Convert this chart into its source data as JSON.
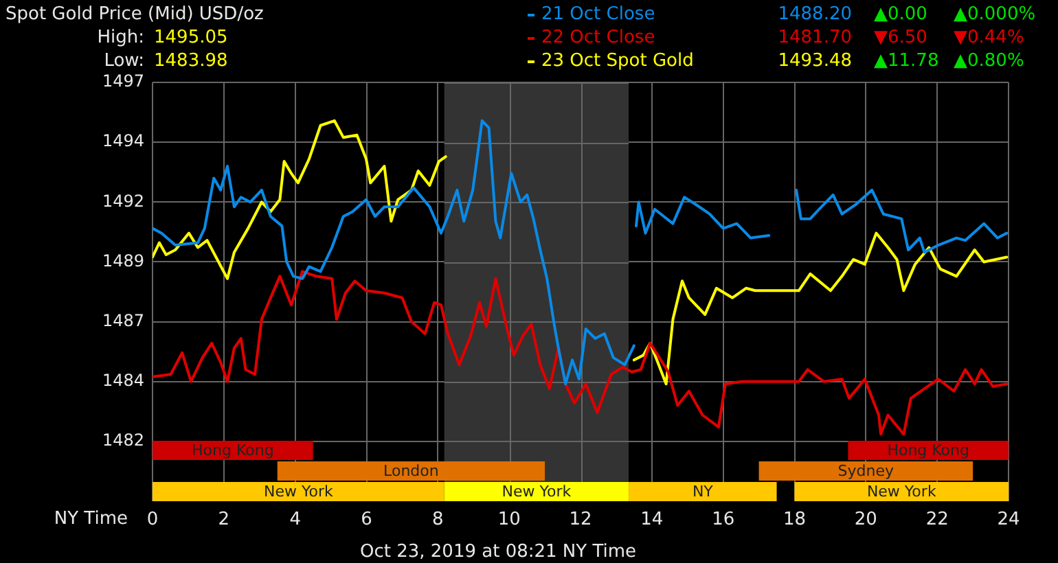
{
  "chart_data": {
    "type": "line",
    "title": "Spot Gold Price (Mid) USD/oz",
    "xlabel": "NY Time",
    "xlim": [
      0,
      24
    ],
    "xticks": [
      0,
      2,
      4,
      6,
      8,
      10,
      12,
      14,
      16,
      18,
      20,
      22,
      24
    ],
    "ylim": [
      1479.5,
      1497
    ],
    "yticks": [
      1482,
      {
        "value": 1484.5,
        "label": "1484"
      },
      1487,
      {
        "value": 1489.5,
        "label": "1489"
      },
      1492,
      {
        "value": 1494.5,
        "label": "1494"
      },
      1497
    ],
    "grid": true,
    "legend": "top right",
    "marker": "none",
    "line_style": "solid",
    "series": [
      {
        "name": "21 Oct Close",
        "color": "#0a8ae6",
        "x": [
          0,
          0.25,
          0.64,
          1.27,
          1.46,
          1.72,
          1.91,
          2.1,
          2.29,
          2.48,
          2.74,
          3.06,
          3.31,
          3.63,
          3.76,
          3.95,
          4.2,
          4.39,
          4.71,
          5.03,
          5.35,
          5.61,
          5.99,
          6.24,
          6.5,
          6.88,
          7.32,
          7.77,
          8.09,
          8.28,
          8.54,
          8.73,
          8.98,
          9.24,
          9.43,
          9.62,
          9.75,
          10.06,
          10.32,
          10.5,
          10.68,
          10.87,
          11.06,
          11.26,
          11.38,
          11.58,
          11.77,
          11.96,
          12.15,
          12.41,
          12.67,
          12.92,
          13.24,
          13.5,
          13.53,
          13.56,
          13.63,
          13.82,
          14.08,
          14.59,
          14.91,
          15.23,
          15.62,
          16.0,
          16.38,
          16.77,
          17.28,
          17.6,
          18.05,
          18.18,
          18.44,
          18.69,
          19.08,
          19.33,
          19.72,
          20.17,
          20.49,
          21.0,
          21.19,
          21.51,
          21.64,
          22.03,
          22.54,
          22.79,
          23.31,
          23.69,
          23.95
        ],
        "values": [
          1490.9,
          1490.7,
          1490.2,
          1490.3,
          1490.9,
          1493,
          1492.5,
          1493.5,
          1491.8,
          1492.2,
          1492,
          1492.5,
          1491.4,
          1491,
          1489.5,
          1488.9,
          1488.8,
          1489.3,
          1489.1,
          1490.1,
          1491.4,
          1491.6,
          1492.1,
          1491.4,
          1491.8,
          1491.8,
          1492.6,
          1491.8,
          1490.7,
          1491.4,
          1492.5,
          1491.2,
          1492.5,
          1495.4,
          1495.1,
          1491.2,
          1490.5,
          1493.2,
          1492,
          1492.3,
          1491.3,
          1490,
          1488.8,
          1486.9,
          1485.9,
          1484.4,
          1485.4,
          1484.6,
          1486.7,
          1486.3,
          1486.5,
          1485.5,
          1485.2,
          1486,
          null,
          1491,
          1492,
          1490.7,
          1491.7,
          1491.1,
          1492.2,
          1491.9,
          1491.5,
          1490.9,
          1491.1,
          1490.5,
          1490.6,
          null,
          1492.5,
          1491.3,
          1491.3,
          1491.7,
          1492.3,
          1491.5,
          1491.9,
          1492.5,
          1491.5,
          1491.3,
          1490,
          1490.5,
          1489.9,
          1490.2,
          1490.5,
          1490.4,
          1491.1,
          1490.5,
          1490.7
        ]
      },
      {
        "name": "22 Oct Close",
        "color": "#e00000",
        "x": [
          0,
          0.51,
          0.83,
          1.08,
          1.4,
          1.66,
          1.91,
          2.1,
          2.29,
          2.48,
          2.61,
          2.87,
          3.06,
          3.31,
          3.57,
          3.89,
          4.2,
          4.59,
          5.03,
          5.16,
          5.41,
          5.67,
          5.99,
          6.5,
          7.0,
          7.26,
          7.64,
          7.9,
          8.09,
          8.28,
          8.6,
          8.92,
          9.17,
          9.36,
          9.62,
          9.94,
          10.13,
          10.38,
          10.62,
          10.87,
          11.13,
          11.38,
          11.58,
          11.83,
          12.15,
          12.47,
          12.86,
          13.18,
          13.44,
          13.69,
          13.95,
          14.21,
          14.46,
          14.72,
          15.04,
          15.42,
          15.87,
          16.06,
          16.51,
          17.03,
          18.12,
          18.37,
          18.82,
          19.33,
          19.53,
          19.97,
          20.36,
          20.42,
          20.62,
          21.06,
          21.26,
          21.64,
          22.03,
          22.47,
          22.79,
          23.05,
          23.24,
          23.56,
          23.95
        ],
        "values": [
          1484.7,
          1484.8,
          1485.7,
          1484.5,
          1485.5,
          1486.1,
          1485.3,
          1484.5,
          1485.9,
          1486.3,
          1485,
          1484.8,
          1487.1,
          1488,
          1488.9,
          1487.7,
          1489.1,
          1488.9,
          1488.8,
          1487.1,
          1488.2,
          1488.7,
          1488.3,
          1488.2,
          1488,
          1487,
          1486.5,
          1487.8,
          1487.7,
          1486.5,
          1485.2,
          1486.4,
          1487.8,
          1486.8,
          1488.8,
          1486.7,
          1485.6,
          1486.4,
          1486.9,
          1485.2,
          1484.2,
          1485.9,
          1484.4,
          1483.6,
          1484.4,
          1483.2,
          1484.8,
          1485.1,
          1484.9,
          1485,
          1486.1,
          1485.5,
          1484.9,
          1483.5,
          1484.1,
          1483.1,
          1482.6,
          1484.4,
          1484.5,
          1484.5,
          1484.5,
          1485,
          1484.5,
          1484.6,
          1483.8,
          1484.6,
          1483.1,
          1482.3,
          1483.1,
          1482.3,
          1483.8,
          1484.2,
          1484.6,
          1484.1,
          1485,
          1484.4,
          1485,
          1484.3,
          1484.4
        ]
      },
      {
        "name": "23 Oct Spot Gold",
        "color": "#ffff00",
        "x": [
          0,
          0.19,
          0.38,
          0.64,
          1.02,
          1.27,
          1.53,
          1.78,
          2.1,
          2.29,
          2.68,
          3.06,
          3.31,
          3.57,
          3.69,
          3.89,
          4.08,
          4.39,
          4.71,
          5.1,
          5.35,
          5.73,
          5.99,
          6.11,
          6.5,
          6.69,
          6.88,
          7.26,
          7.45,
          7.77,
          8.03,
          8.22,
          8.5,
          13.5,
          13.76,
          13.95,
          14.14,
          14.4,
          14.59,
          14.85,
          15.04,
          15.49,
          15.81,
          16.26,
          16.64,
          16.9,
          18.12,
          18.44,
          19.01,
          19.33,
          19.65,
          19.97,
          20.29,
          20.62,
          20.87,
          21.06,
          21.38,
          21.77,
          22.09,
          22.54,
          23.05,
          23.31,
          23.95
        ],
        "values": [
          1489.7,
          1490.3,
          1489.8,
          1490,
          1490.7,
          1490.1,
          1490.4,
          1489.7,
          1488.8,
          1489.9,
          1490.9,
          1492,
          1491.6,
          1492.1,
          1493.7,
          1493.2,
          1492.8,
          1493.8,
          1495.2,
          1495.4,
          1494.7,
          1494.8,
          1493.8,
          1492.8,
          1493.5,
          1491.2,
          1492.1,
          1492.5,
          1493.3,
          1492.7,
          1493.7,
          1493.9,
          null,
          1485.4,
          1485.6,
          1486.1,
          1485.4,
          1484.4,
          1487.1,
          1488.7,
          1488,
          1487.3,
          1488.4,
          1488,
          1488.4,
          1488.3,
          1488.3,
          1489,
          1488.3,
          1488.9,
          1489.6,
          1489.4,
          1490.7,
          1490.1,
          1489.6,
          1488.3,
          1489.4,
          1490.1,
          1489.2,
          1488.9,
          1490,
          1489.5,
          1489.7
        ]
      }
    ],
    "bands": [
      {
        "axis": "x",
        "from": 8.18,
        "to": 13.35,
        "label": null,
        "color": "#333333"
      },
      {
        "axis": "x",
        "from": 0,
        "to": 4.5,
        "label": "Hong Kong",
        "color": "#cc0000"
      },
      {
        "axis": "x",
        "from": 19.5,
        "to": 24,
        "label": "Hong Kong",
        "color": "#cc0000"
      },
      {
        "axis": "x",
        "from": 3.5,
        "to": 11,
        "label": "London",
        "color": "#e07000"
      },
      {
        "axis": "x",
        "from": 17,
        "to": 23,
        "label": "Sydney",
        "color": "#e07000"
      },
      {
        "axis": "x",
        "from": 0,
        "to": 8.18,
        "label": "New York",
        "color": "#ffc800"
      },
      {
        "axis": "x",
        "from": 8.18,
        "to": 13.35,
        "label": "New York",
        "color": "#ffff00"
      },
      {
        "axis": "x",
        "from": 13.35,
        "to": 17.5,
        "label": "NY",
        "color": "#ffc800"
      },
      {
        "axis": "x",
        "from": 18,
        "to": 24,
        "label": "New York",
        "color": "#ffc800"
      }
    ],
    "annotations": [
      "High:",
      "1495.05",
      "Low:",
      "1483.98",
      "1488.20",
      "▲0.00",
      "▲0.000%",
      "1481.70",
      "▼6.50",
      "▼0.44%",
      "1493.48",
      "▲11.78",
      "▲0.80%",
      "Oct 23, 2019 at 08:21 NY Time"
    ]
  }
}
